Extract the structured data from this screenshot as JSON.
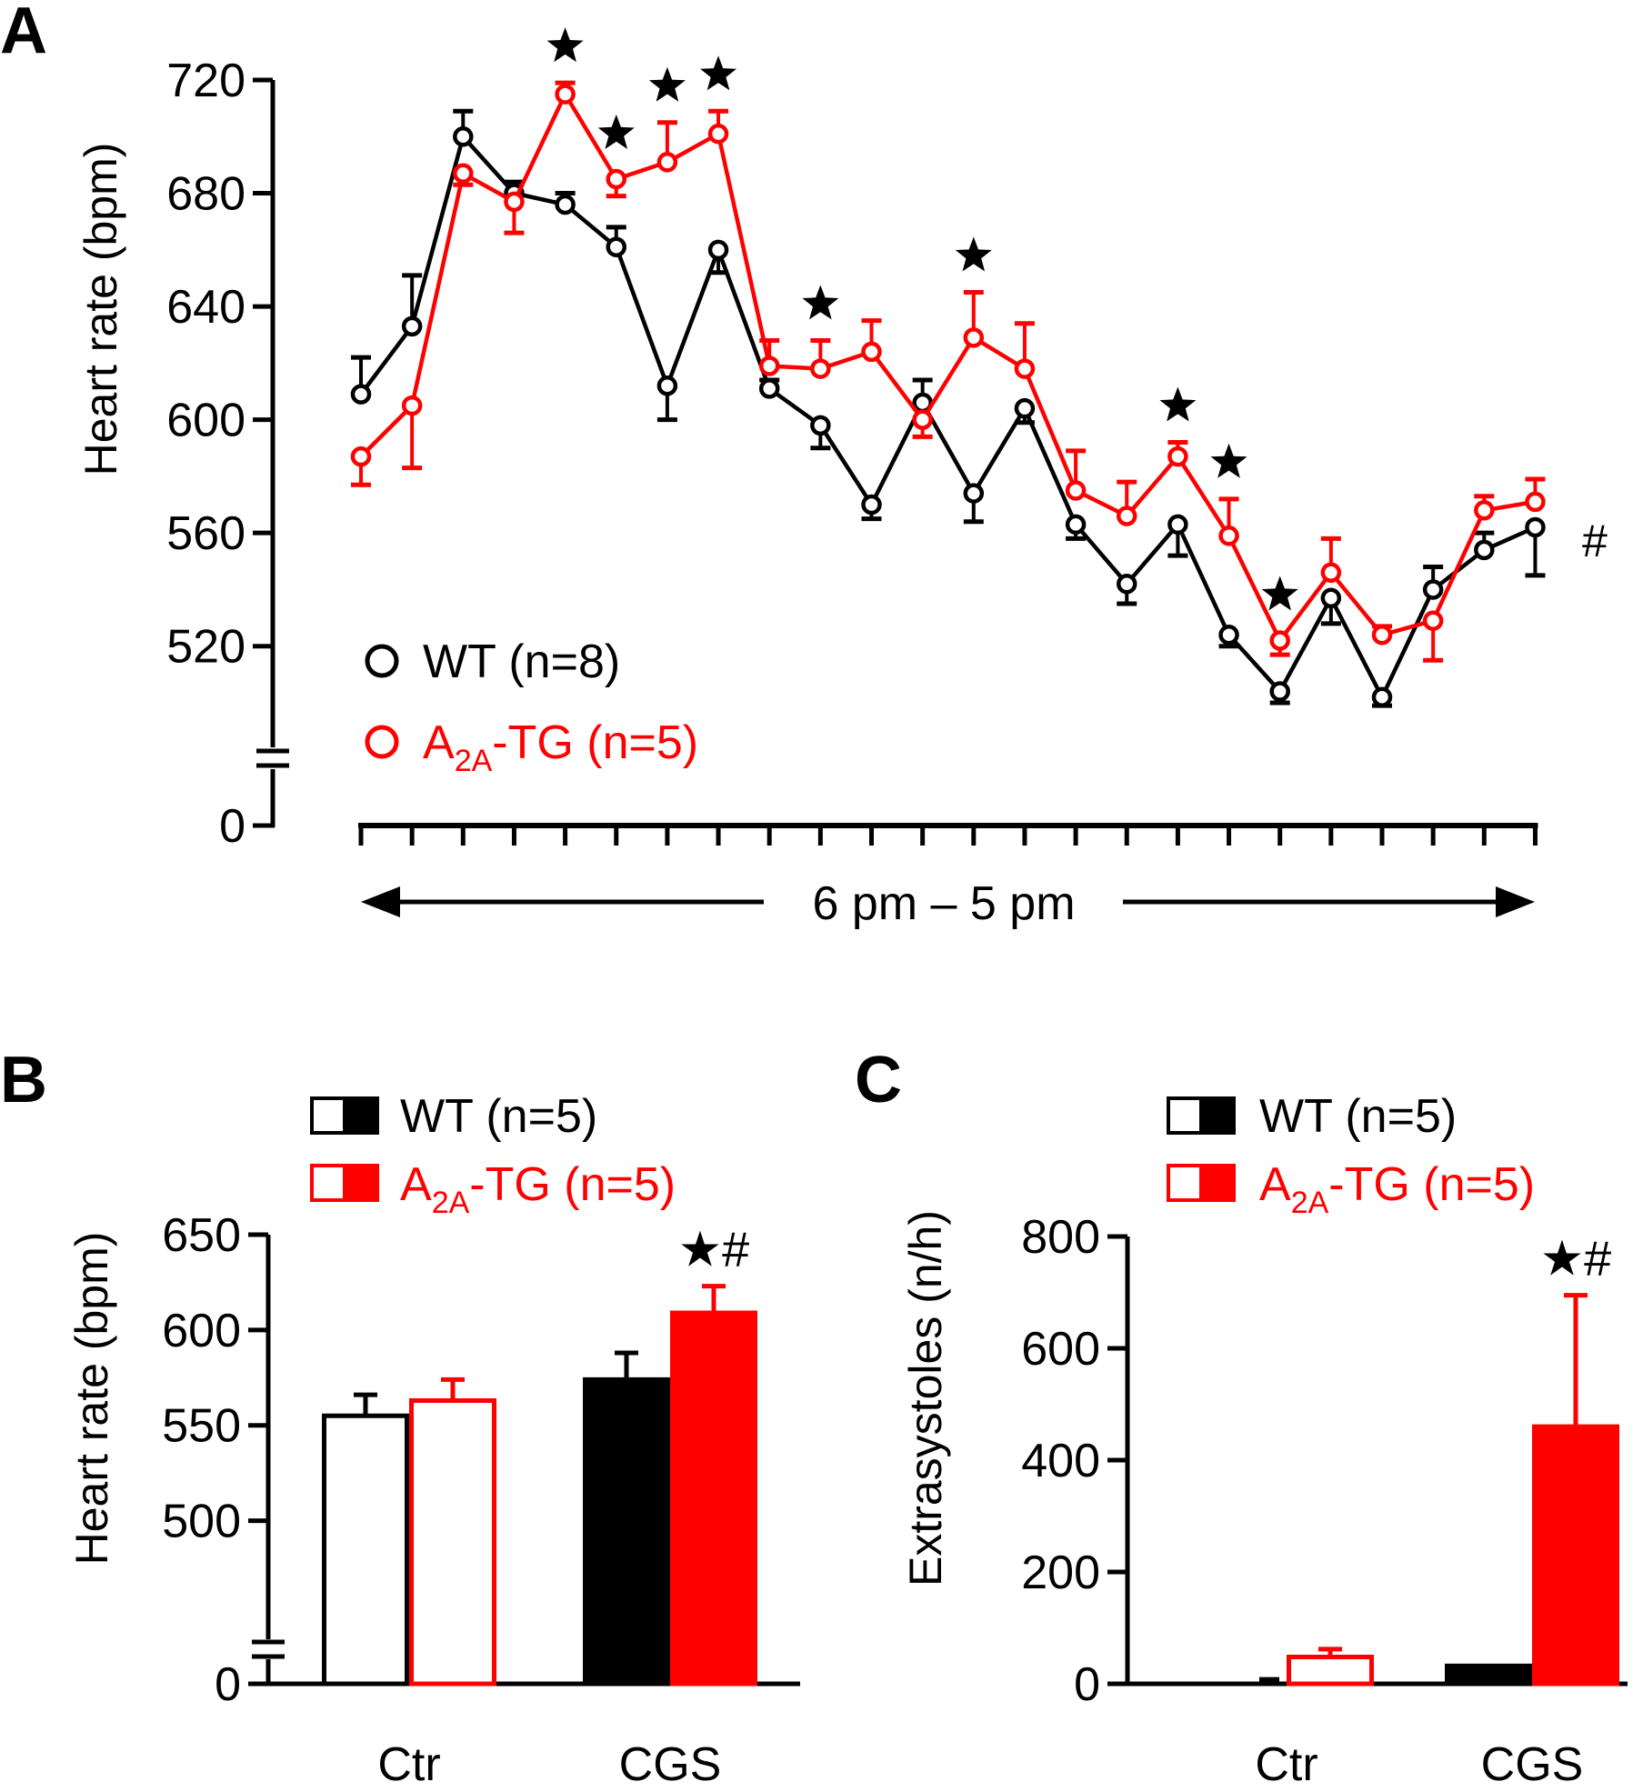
{
  "colors": {
    "wt": "#000000",
    "tg": "#ff0000",
    "axis": "#000000",
    "background": "#ffffff"
  },
  "sub": {
    "tg": "2A"
  },
  "chart_data": [
    {
      "panel": "A",
      "type": "line",
      "ylabel": "Heart rate (bpm)",
      "xlabel": "6 pm – 5 pm",
      "y_break": true,
      "ylim": [
        500,
        720
      ],
      "yticks": [
        520,
        560,
        600,
        640,
        680,
        720
      ],
      "ytick_labels": [
        "520",
        "560",
        "600",
        "640",
        "680",
        "720"
      ],
      "y_zero_label": "0",
      "x": [
        1,
        2,
        3,
        4,
        5,
        6,
        7,
        8,
        9,
        10,
        11,
        12,
        13,
        14,
        15,
        16,
        17,
        18,
        19,
        20,
        21,
        22,
        23,
        24
      ],
      "series": [
        {
          "name": "WT (n=8)",
          "color": "#000000",
          "values": [
            609,
            633,
            700,
            680,
            676,
            661,
            612,
            660,
            611,
            598,
            570,
            606,
            574,
            604,
            563,
            542,
            563,
            524,
            504,
            537,
            502,
            540,
            554,
            562
          ],
          "errors": [
            13,
            18,
            9,
            4,
            4,
            7,
            12,
            8,
            3,
            8,
            5,
            8,
            10,
            5,
            5,
            7,
            11,
            4,
            4,
            9,
            3,
            8,
            6,
            17
          ],
          "err_dir": [
            1,
            1,
            1,
            1,
            1,
            1,
            -1,
            -1,
            1,
            -1,
            -1,
            1,
            -1,
            -1,
            -1,
            -1,
            -1,
            -1,
            -1,
            -1,
            -1,
            1,
            1,
            -1
          ]
        },
        {
          "name": "A",
          "name_sub": "2A",
          "name_rest": "-TG (n=5)",
          "color": "#ff0000",
          "values": [
            587,
            605,
            687,
            677,
            715,
            685,
            691,
            701,
            619,
            618,
            624,
            600,
            629,
            618,
            575,
            566,
            587,
            559,
            522,
            546,
            524,
            529,
            568,
            571
          ],
          "errors": [
            10,
            22,
            4,
            11,
            4,
            6,
            14,
            8,
            9,
            10,
            11,
            6,
            16,
            16,
            14,
            12,
            5,
            13,
            5,
            12,
            3,
            14,
            5,
            8
          ],
          "err_dir": [
            -1,
            -1,
            -1,
            -1,
            1,
            -1,
            1,
            1,
            1,
            1,
            1,
            -1,
            1,
            1,
            1,
            1,
            1,
            1,
            -1,
            1,
            1,
            -1,
            1,
            1
          ]
        }
      ],
      "significance": {
        "star_x": [
          5,
          6,
          7,
          8,
          10,
          13,
          17,
          18,
          19
        ],
        "star_symbol": "★",
        "hash_symbol": "#"
      }
    },
    {
      "panel": "B",
      "type": "bar",
      "ylabel": "Heart rate (bpm)",
      "categories": [
        "Ctr",
        "CGS"
      ],
      "y_break": true,
      "ylim": [
        475,
        650
      ],
      "yticks": [
        500,
        550,
        600,
        650
      ],
      "ytick_labels": [
        "500",
        "550",
        "600",
        "650"
      ],
      "y_zero_label": "0",
      "series": [
        {
          "name": "WT (n=5)",
          "color": "#000000",
          "values": [
            555,
            574
          ],
          "errors": [
            11,
            14
          ]
        },
        {
          "name": "A",
          "name_sub": "2A",
          "name_rest": "-TG (n=5)",
          "color": "#ff0000",
          "values": [
            563,
            609
          ],
          "errors": [
            11,
            14
          ]
        }
      ],
      "annotation": {
        "text": "★#",
        "category": "CGS"
      }
    },
    {
      "panel": "C",
      "type": "bar",
      "ylabel": "Extrasystoles (n/h)",
      "categories": [
        "Ctr",
        "CGS"
      ],
      "ylim": [
        0,
        800
      ],
      "yticks": [
        0,
        200,
        400,
        600,
        800
      ],
      "ytick_labels": [
        "0",
        "200",
        "400",
        "600",
        "800"
      ],
      "series": [
        {
          "name": "WT (n=5)",
          "color": "#000000",
          "values": [
            12,
            32
          ],
          "errors": [
            0,
            0
          ]
        },
        {
          "name": "A",
          "name_sub": "2A",
          "name_rest": "-TG (n=5)",
          "color": "#ff0000",
          "values": [
            48,
            460
          ],
          "errors": [
            14,
            235
          ]
        }
      ],
      "annotation": {
        "text": "★#",
        "category": "CGS"
      }
    }
  ]
}
